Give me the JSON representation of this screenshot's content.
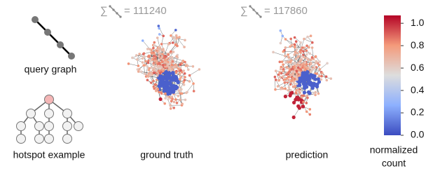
{
  "query": {
    "caption": "query graph"
  },
  "hotspot": {
    "caption": "hotspot example"
  },
  "panels": [
    {
      "caption": "ground truth",
      "sum_symbol": "∑",
      "count_text": "= 111240"
    },
    {
      "caption": "prediction",
      "sum_symbol": "∑",
      "count_text": "= 117860"
    }
  ],
  "colorbar": {
    "label_lines": [
      "normalized",
      "count"
    ],
    "lim": [
      0,
      1.07
    ],
    "ticks": [
      {
        "value": 0,
        "label": "0.0"
      },
      {
        "value": 0.2,
        "label": "0.2"
      },
      {
        "value": 0.4,
        "label": "0.4"
      },
      {
        "value": 0.6,
        "label": "0.6"
      },
      {
        "value": 0.8,
        "label": "0.8"
      },
      {
        "value": 1,
        "label": "1.0"
      }
    ]
  }
}
